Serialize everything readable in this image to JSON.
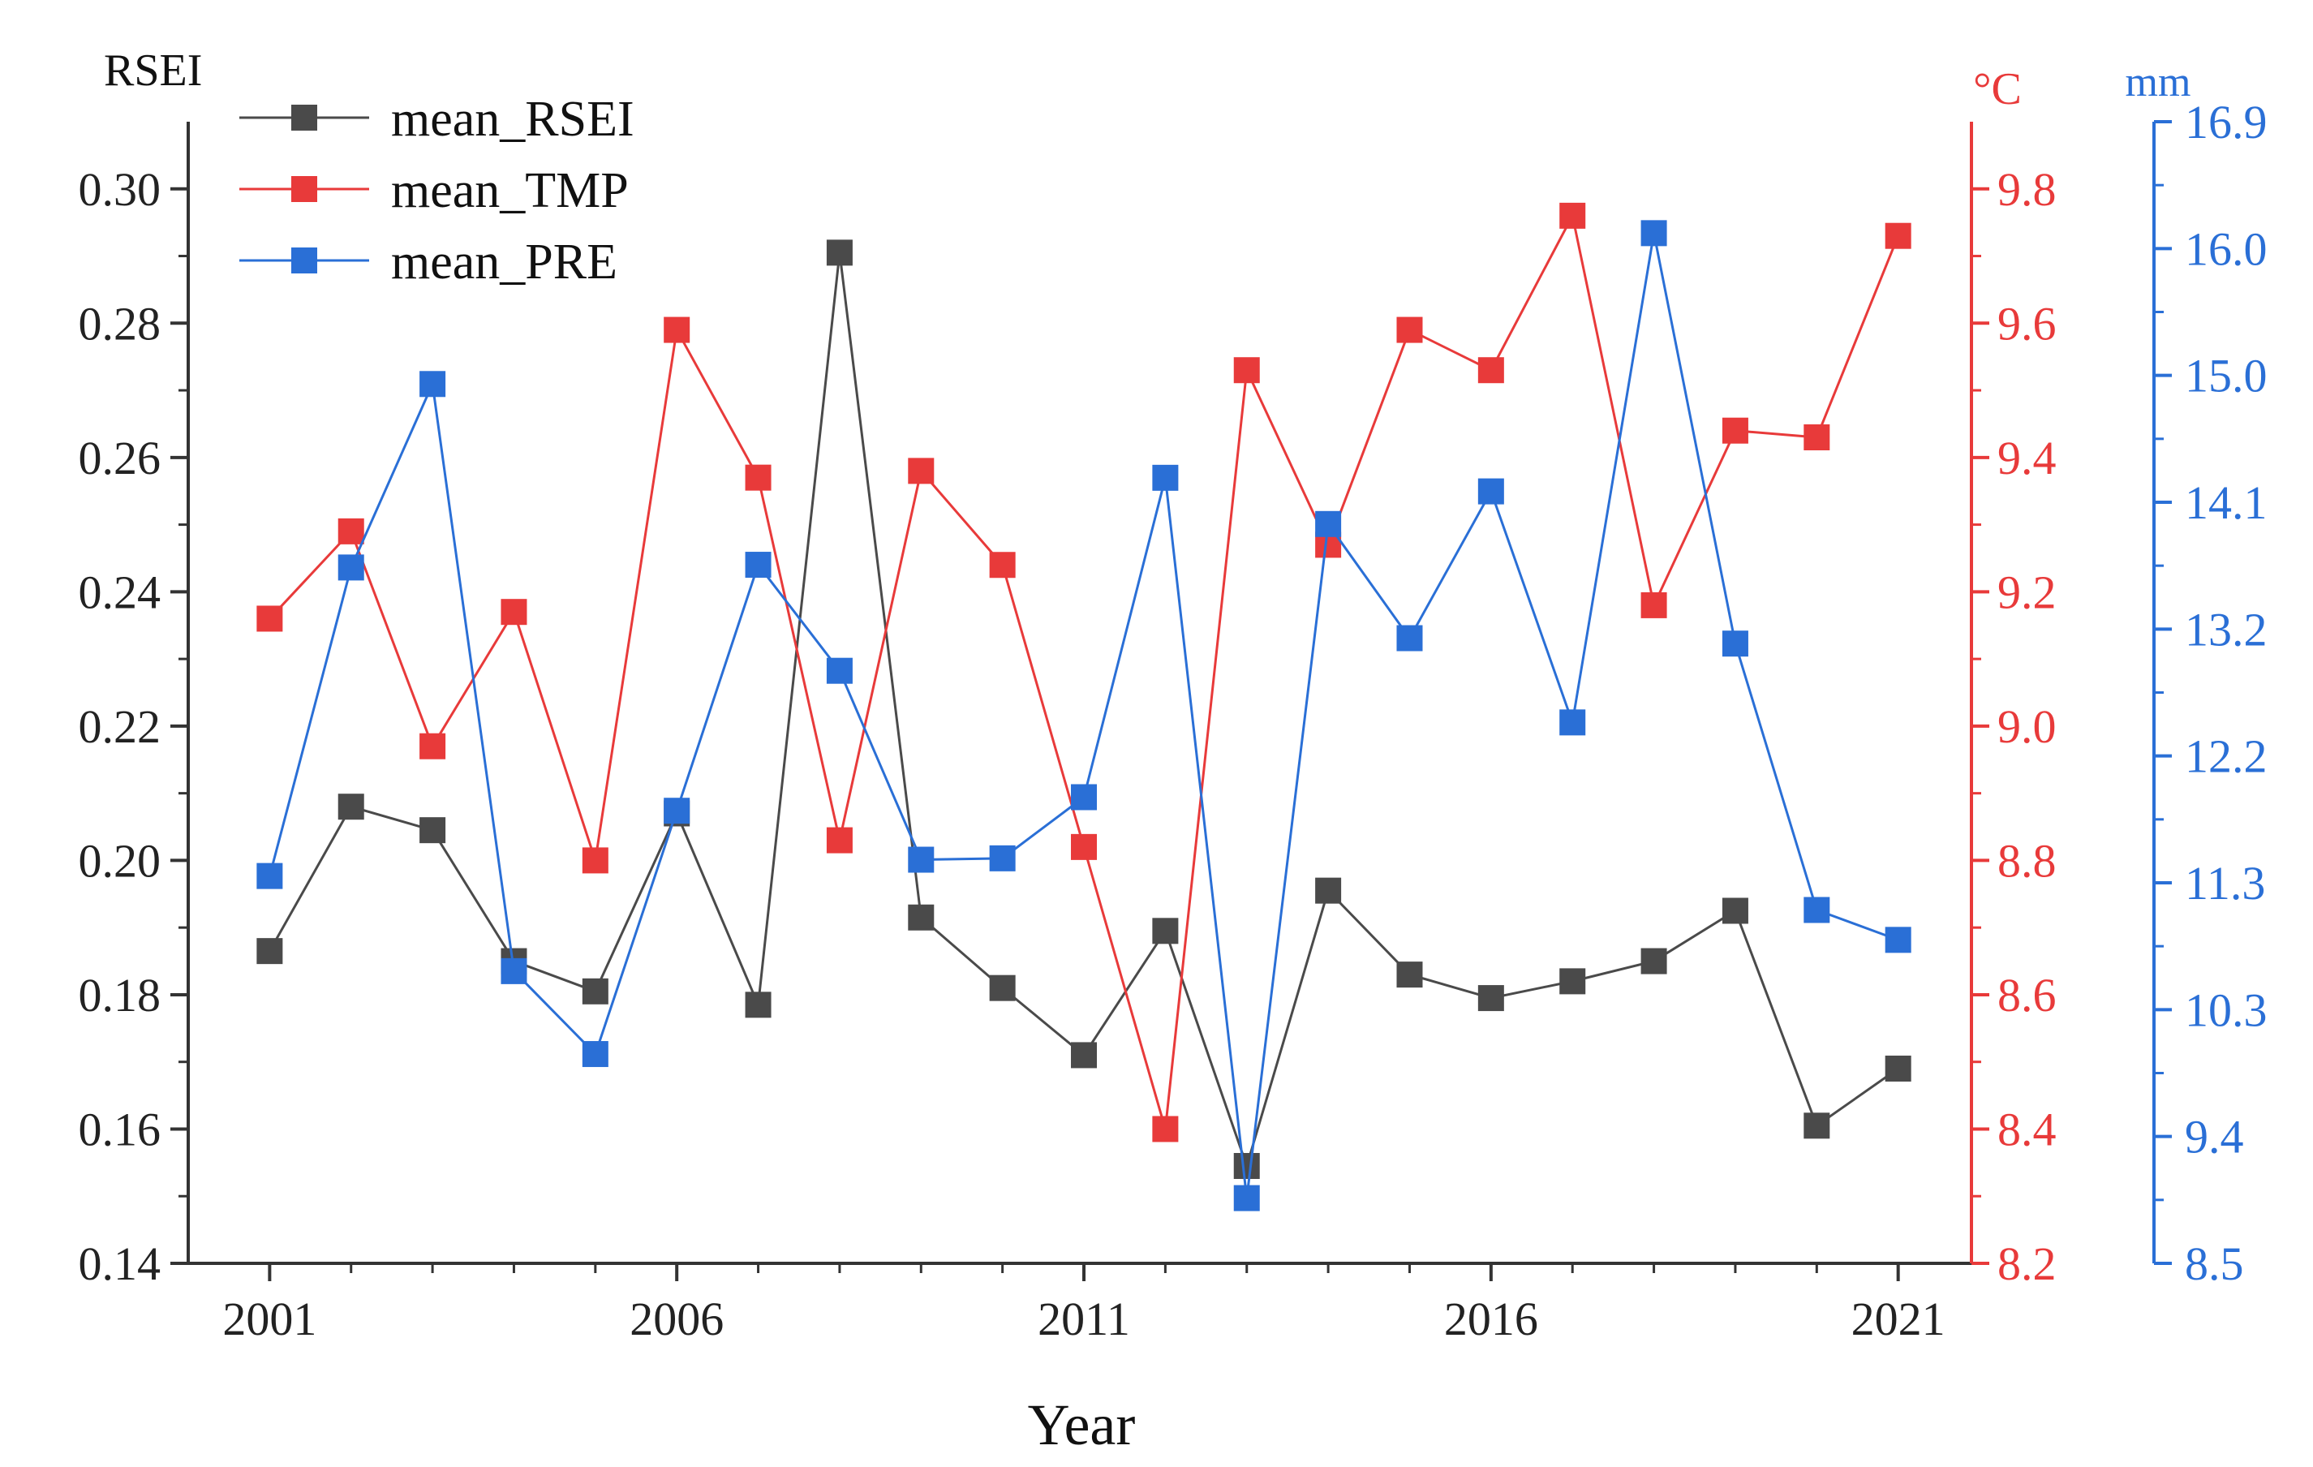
{
  "chart_data": {
    "type": "line",
    "xlabel": "Year",
    "x": [
      2001,
      2002,
      2003,
      2004,
      2005,
      2006,
      2007,
      2008,
      2009,
      2010,
      2011,
      2012,
      2013,
      2014,
      2015,
      2016,
      2017,
      2018,
      2019,
      2020,
      2021
    ],
    "x_ticks": [
      "2001",
      "2006",
      "2011",
      "2016",
      "2021"
    ],
    "x_range": [
      2000,
      2021.9
    ],
    "series": [
      {
        "name": "mean_RSEI",
        "axis": "left",
        "color": "#4a4a4a",
        "values": [
          0.1865,
          0.208,
          0.2045,
          0.185,
          0.1805,
          0.207,
          0.1785,
          0.2905,
          0.1915,
          0.181,
          0.171,
          0.1895,
          0.1545,
          0.1955,
          0.183,
          0.1795,
          0.182,
          0.185,
          0.1925,
          0.1605,
          0.169
        ]
      },
      {
        "name": "mean_TMP",
        "axis": "right1",
        "color": "#e83a3a",
        "values": [
          9.16,
          9.29,
          8.97,
          9.17,
          8.8,
          9.59,
          9.37,
          8.83,
          9.38,
          9.24,
          8.82,
          8.4,
          9.53,
          9.27,
          9.59,
          9.53,
          9.76,
          9.18,
          9.44,
          9.43,
          9.73
        ]
      },
      {
        "name": "mean_PRE",
        "axis": "right2",
        "color": "#2a6fd6",
        "values": [
          11.35,
          13.62,
          14.97,
          10.65,
          10.04,
          11.83,
          13.64,
          12.86,
          11.47,
          11.48,
          11.93,
          14.28,
          8.98,
          13.94,
          13.1,
          14.18,
          12.48,
          16.08,
          13.06,
          11.1,
          10.88
        ]
      }
    ],
    "axes": {
      "left": {
        "title": "RSEI",
        "range": [
          0.14,
          0.31
        ],
        "ticks": [
          "0.14",
          "0.16",
          "0.18",
          "0.20",
          "0.22",
          "0.24",
          "0.26",
          "0.28",
          "0.30"
        ],
        "color": "#333333"
      },
      "right1": {
        "title": "°C",
        "range": [
          8.2,
          9.9
        ],
        "ticks": [
          "8.2",
          "8.4",
          "8.6",
          "8.8",
          "9.0",
          "9.2",
          "9.4",
          "9.6",
          "9.8"
        ],
        "color": "#e83a3a"
      },
      "right2": {
        "title": "mm",
        "range": [
          8.5,
          16.9
        ],
        "ticks": [
          "8.5",
          "9.4",
          "10.3",
          "11.3",
          "12.2",
          "13.2",
          "14.1",
          "15.0",
          "16.0",
          "16.9"
        ],
        "color": "#2a6fd6"
      }
    },
    "legend": "top-left"
  }
}
